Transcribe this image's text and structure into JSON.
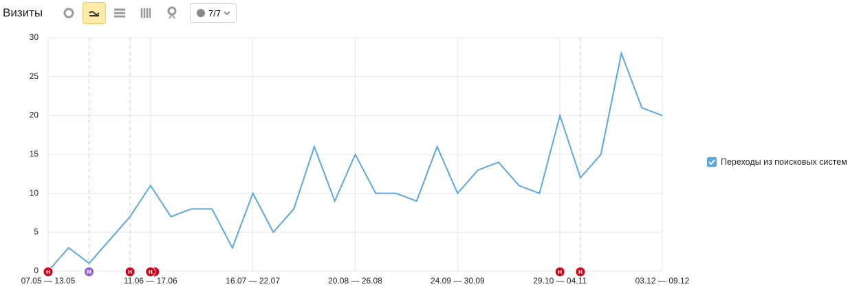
{
  "header": {
    "title": "Визиты",
    "comments_button": "7/7"
  },
  "chart_data": {
    "type": "line",
    "categories": [
      "07.05 — 13.05",
      null,
      null,
      null,
      null,
      "11.06 — 17.06",
      null,
      null,
      null,
      null,
      "16.07 — 22.07",
      null,
      null,
      null,
      null,
      "20.08 — 26.08",
      null,
      null,
      null,
      null,
      "24.09 — 30.09",
      null,
      null,
      null,
      null,
      "29.10 — 04.11",
      null,
      null,
      null,
      null,
      "03.12 — 09.12"
    ],
    "series": [
      {
        "name": "Переходы из поисковых систем",
        "color": "#5aa8e0",
        "values": [
          0,
          3,
          1,
          4,
          7,
          11,
          7,
          8,
          8,
          3,
          10,
          5,
          8,
          16,
          9,
          15,
          10,
          10,
          9,
          16,
          10,
          13,
          14,
          11,
          10,
          20,
          12,
          15,
          28,
          21,
          20
        ]
      }
    ],
    "ylim": [
      0,
      30
    ],
    "yticks": [
      0,
      5,
      10,
      15,
      20,
      25,
      30
    ],
    "grid": true,
    "legend": "right",
    "annotations": [
      "Н",
      "М",
      "Н",
      "Н",
      "Н",
      "Н"
    ]
  }
}
